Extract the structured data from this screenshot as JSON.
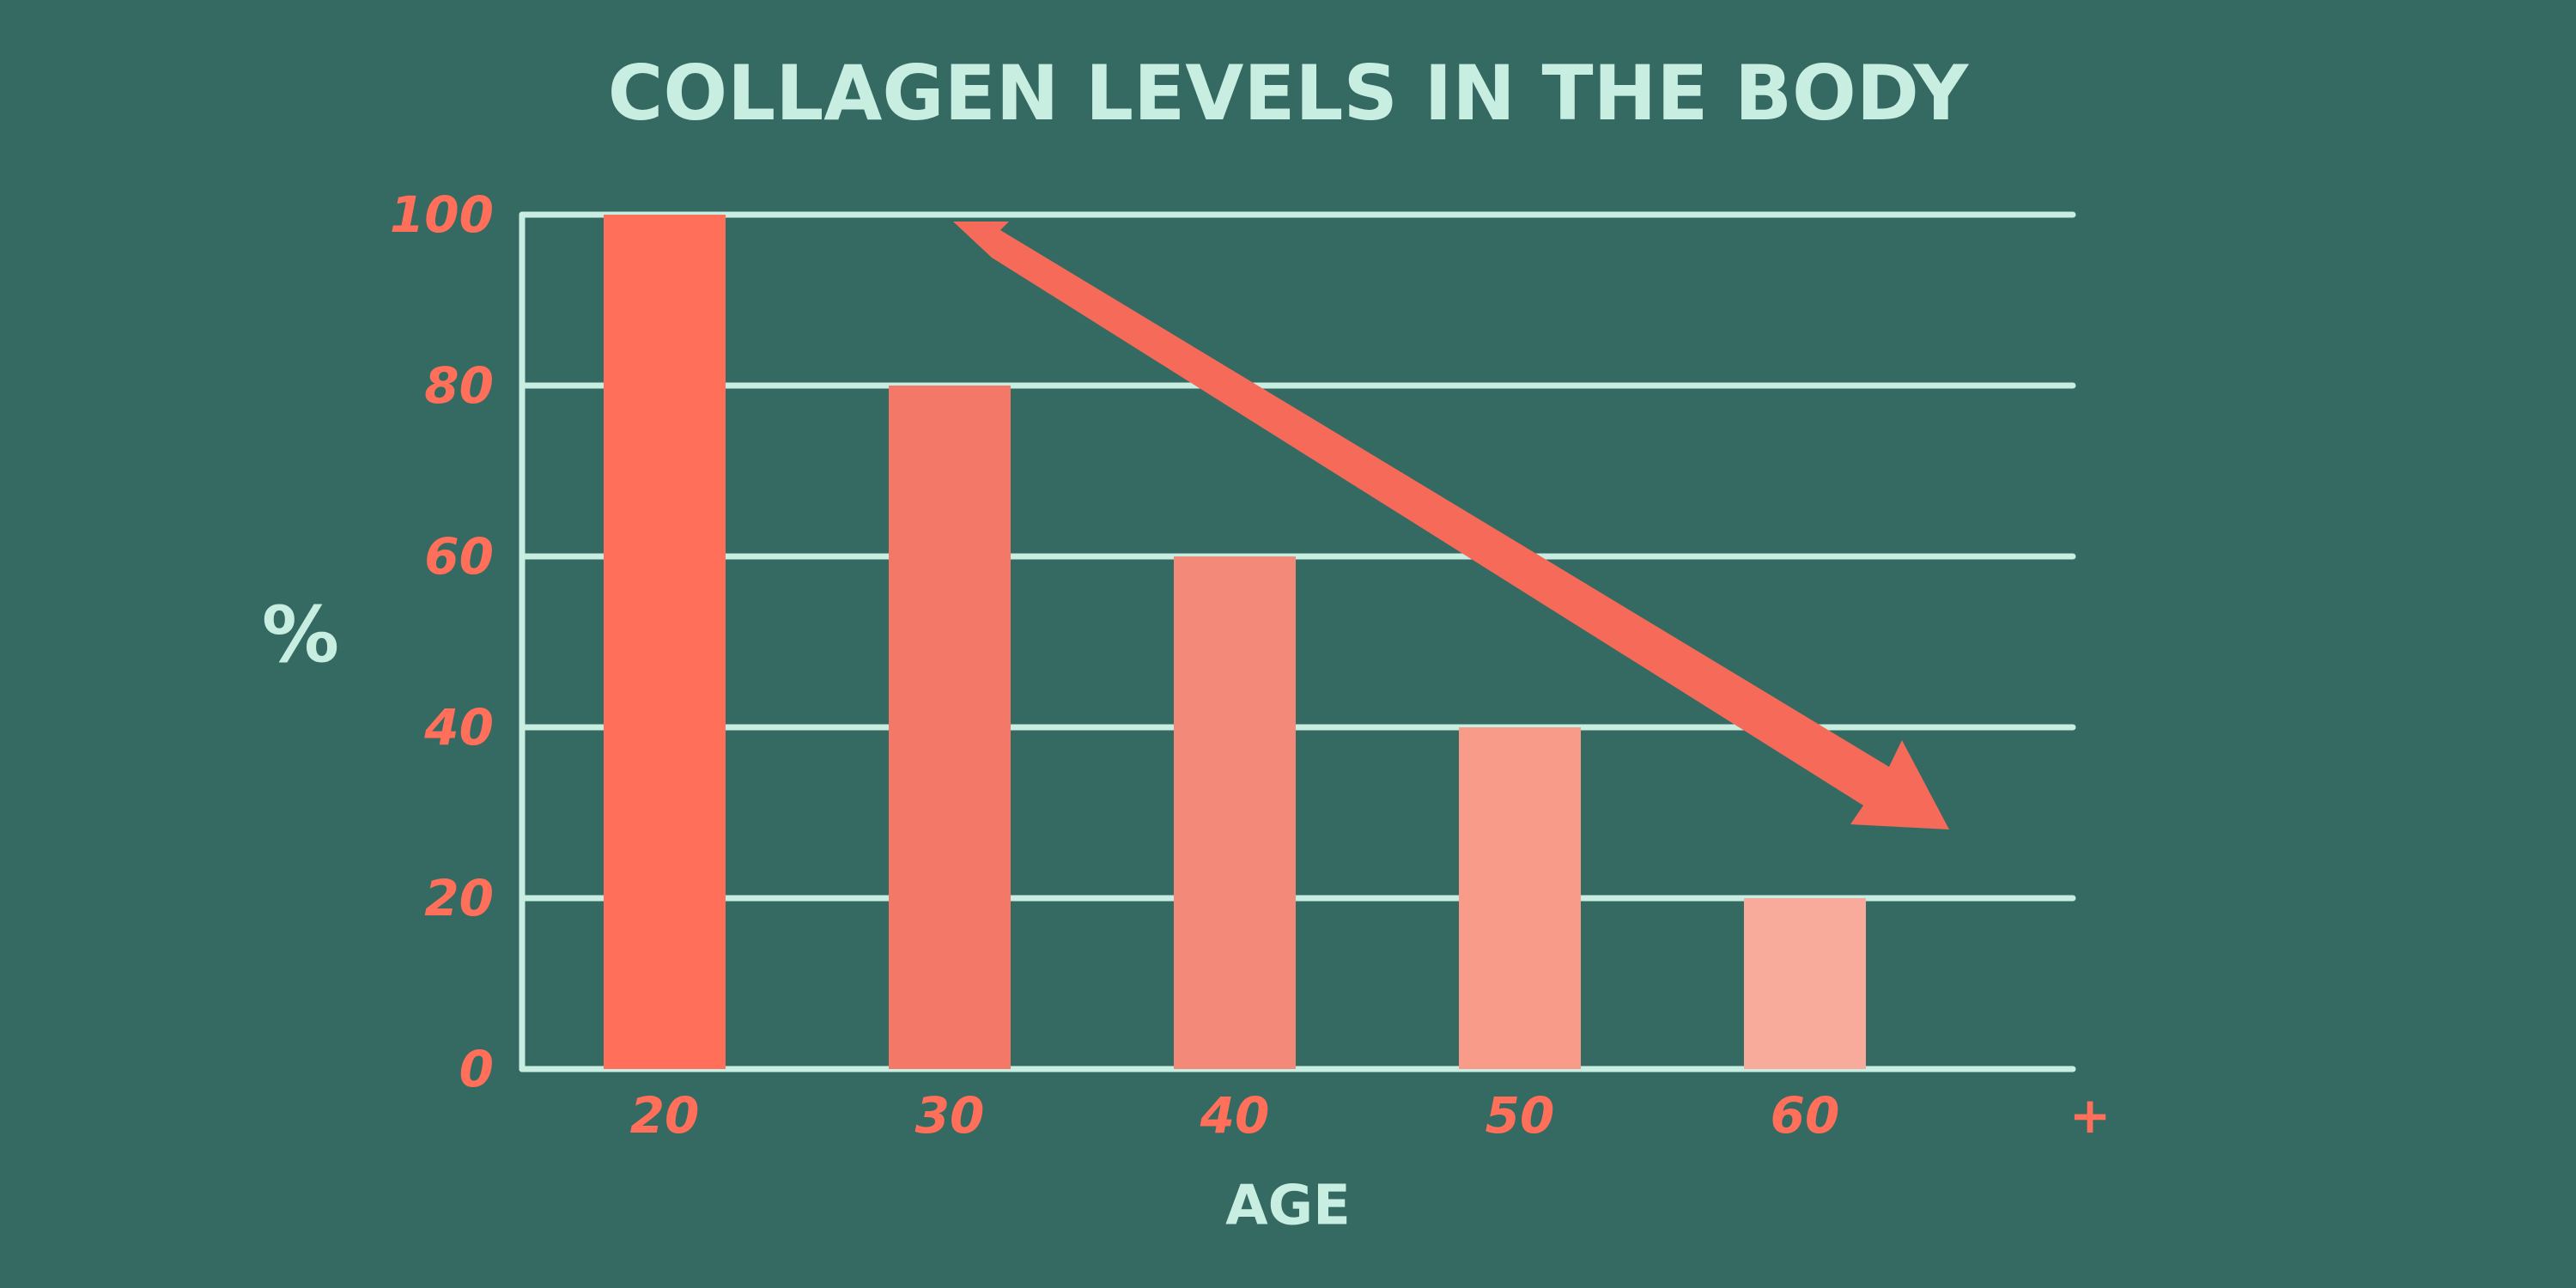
{
  "chart_data": {
    "type": "bar",
    "title": "COLLAGEN LEVELS IN THE BODY",
    "x_label": "AGE",
    "y_label": "%",
    "categories": [
      "20",
      "30",
      "40",
      "50",
      "60",
      "+"
    ],
    "values": [
      100,
      80,
      60,
      40,
      20,
      null
    ],
    "colors": [
      "#ff6f59",
      "#f47867",
      "#f38a79",
      "#f89b89",
      "#f8aa9b",
      null
    ],
    "ylim": [
      0,
      100
    ],
    "yticks": [
      0,
      20,
      40,
      60,
      80,
      100
    ],
    "grid": true
  }
}
